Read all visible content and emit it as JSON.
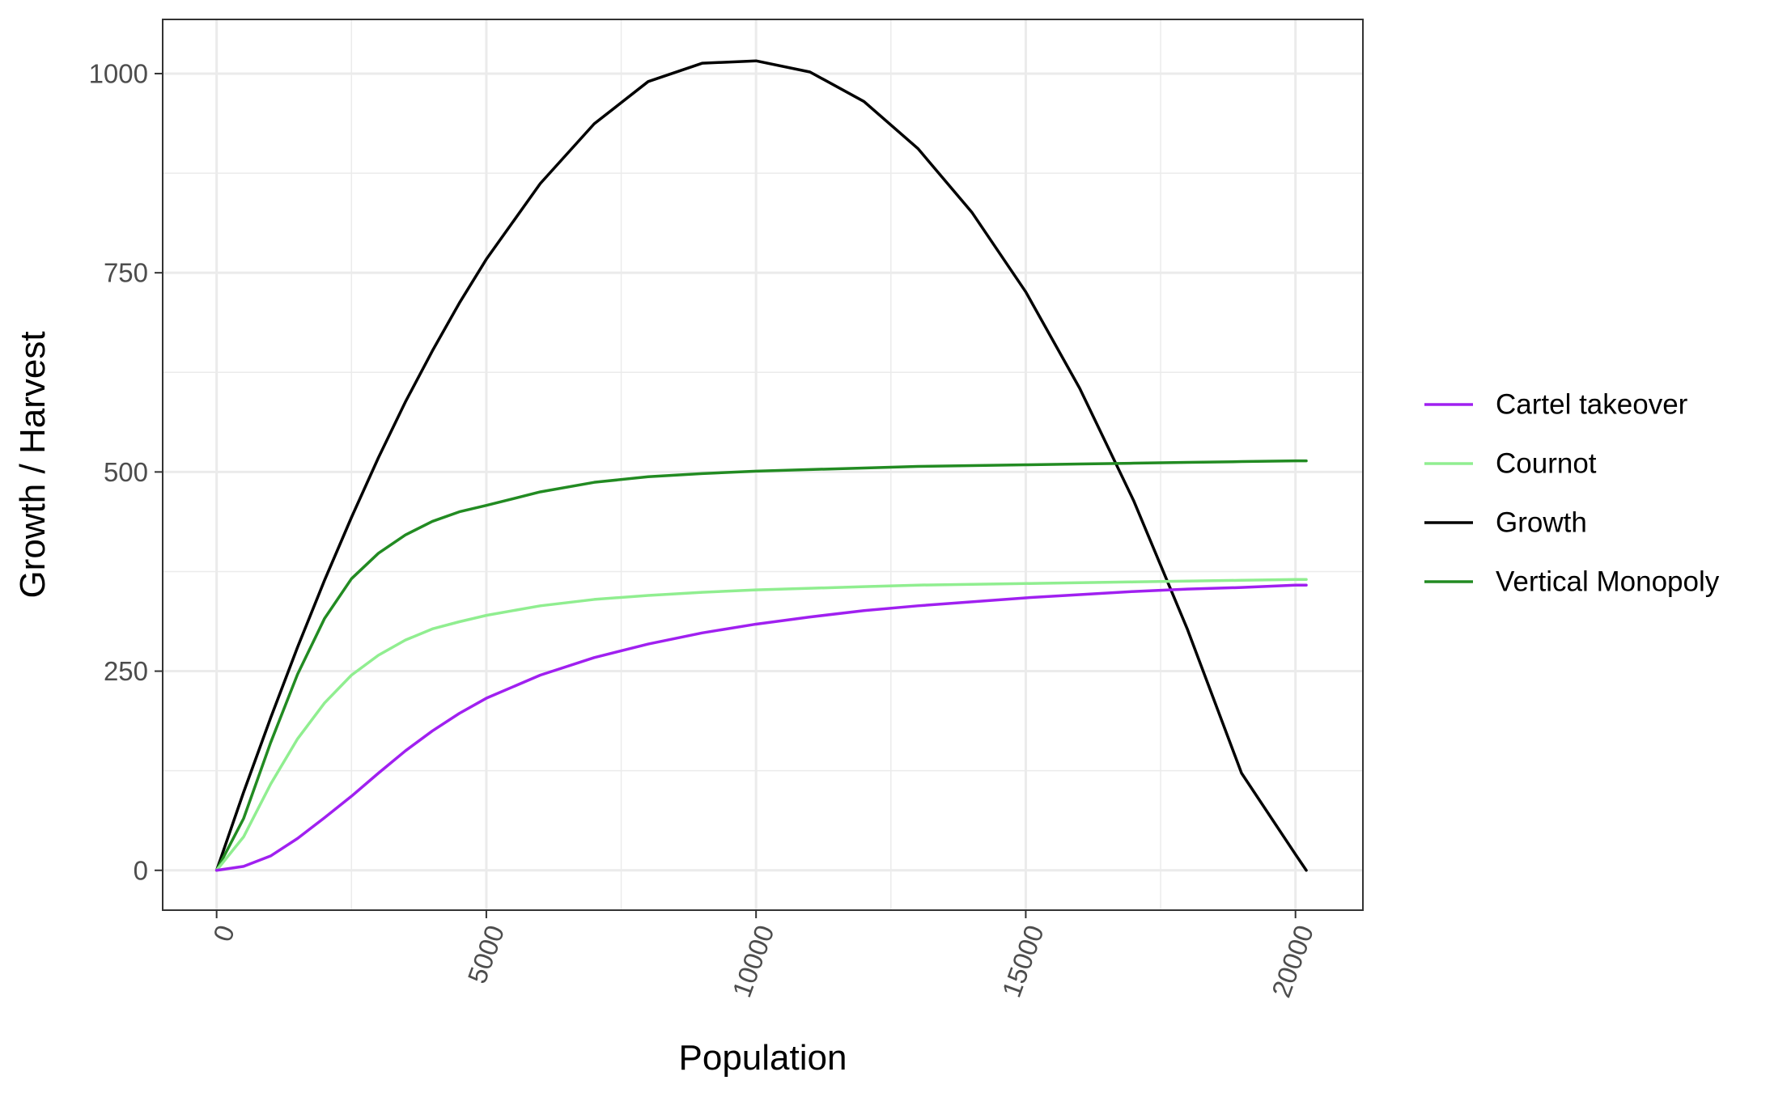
{
  "chart_data": {
    "type": "line",
    "xlabel": "Population",
    "ylabel": "Growth / Harvest",
    "xlim": [
      -1000,
      21250
    ],
    "ylim": [
      -50,
      1068
    ],
    "x_ticks": [
      0,
      5000,
      10000,
      15000,
      20000
    ],
    "x_tick_labels": [
      "0",
      "5000",
      "10000",
      "15000",
      "20000"
    ],
    "x_minor_ticks": [
      2500,
      7500,
      12500,
      17500
    ],
    "y_ticks": [
      0,
      250,
      500,
      750,
      1000
    ],
    "y_tick_labels": [
      "0",
      "250",
      "500",
      "750",
      "1000"
    ],
    "y_minor_ticks": [
      125,
      375,
      625,
      875
    ],
    "grid": true,
    "legend_position": "right",
    "x": [
      0,
      500,
      1000,
      1500,
      2000,
      2500,
      3000,
      3500,
      4000,
      4500,
      5000,
      6000,
      7000,
      8000,
      9000,
      10000,
      11000,
      12000,
      13000,
      14000,
      15000,
      16000,
      17000,
      18000,
      19000,
      20000,
      20200
    ],
    "series": [
      {
        "name": "Cartel takeover",
        "color": "#a020f0",
        "values": [
          0,
          5,
          18,
          40,
          66,
          93,
          122,
          150,
          175,
          197,
          216,
          245,
          267,
          284,
          298,
          309,
          318,
          326,
          332,
          337,
          342,
          346,
          350,
          353,
          355,
          358,
          358
        ]
      },
      {
        "name": "Cournot",
        "color": "#90ee90",
        "values": [
          0,
          42,
          108,
          165,
          210,
          245,
          270,
          289,
          303,
          312,
          320,
          332,
          340,
          345,
          349,
          352,
          354,
          356,
          358,
          359,
          360,
          361,
          362,
          363,
          364,
          365,
          365
        ]
      },
      {
        "name": "Growth",
        "color": "#000000",
        "values": [
          0,
          98,
          191,
          280,
          364,
          443,
          518,
          588,
          652,
          712,
          767,
          862,
          937,
          990,
          1013,
          1016,
          1002,
          965,
          906,
          826,
          726,
          605,
          464,
          302,
          122,
          20,
          0
        ]
      },
      {
        "name": "Vertical Monopoly",
        "color": "#228b22",
        "values": [
          0,
          65,
          160,
          246,
          316,
          366,
          398,
          421,
          438,
          450,
          458,
          475,
          487,
          494,
          498,
          501,
          503,
          505,
          507,
          508,
          509,
          510,
          511,
          512,
          513,
          514,
          514
        ]
      }
    ]
  }
}
